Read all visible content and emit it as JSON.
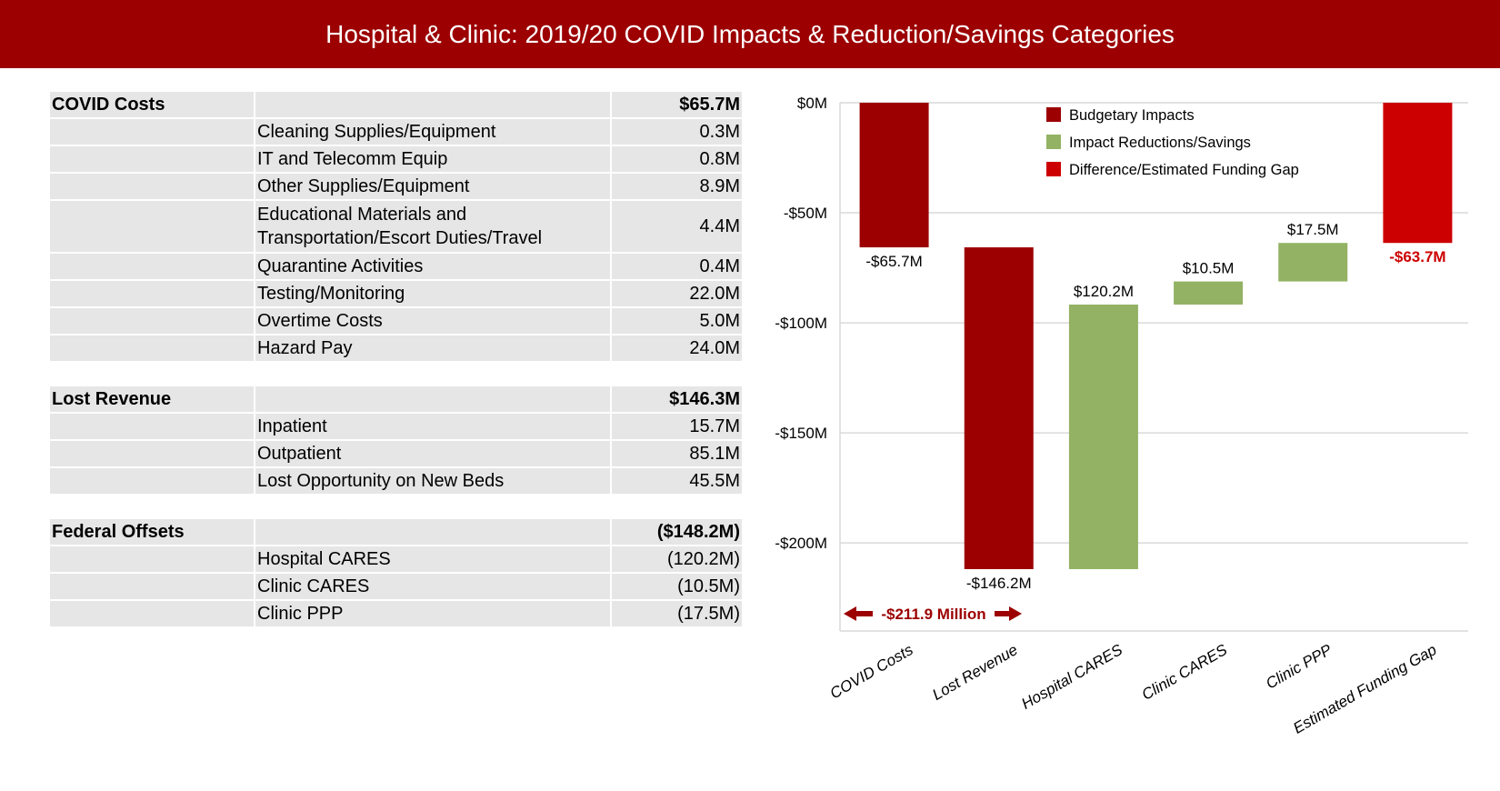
{
  "header": {
    "title": "Hospital & Clinic: 2019/20 COVID Impacts & Reduction/Savings Categories"
  },
  "table": {
    "sections": [
      {
        "label": "COVID Costs",
        "total": "$65.7M",
        "rows": [
          {
            "label": "Cleaning Supplies/Equipment",
            "value": "0.3M"
          },
          {
            "label": "IT and Telecomm Equip",
            "value": "0.8M"
          },
          {
            "label": "Other Supplies/Equipment",
            "value": "8.9M"
          },
          {
            "label": "Educational Materials and Transportation/Escort Duties/Travel",
            "value": "4.4M"
          },
          {
            "label": "Quarantine Activities",
            "value": "0.4M"
          },
          {
            "label": "Testing/Monitoring",
            "value": "22.0M"
          },
          {
            "label": "Overtime Costs",
            "value": "5.0M"
          },
          {
            "label": "Hazard Pay",
            "value": "24.0M"
          }
        ]
      },
      {
        "label": "Lost Revenue",
        "total": "$146.3M",
        "rows": [
          {
            "label": "Inpatient",
            "value": "15.7M"
          },
          {
            "label": "Outpatient",
            "value": "85.1M"
          },
          {
            "label": "Lost Opportunity on New Beds",
            "value": "45.5M"
          }
        ]
      },
      {
        "label": "Federal Offsets",
        "total": "($148.2M)",
        "rows": [
          {
            "label": "Hospital CARES",
            "value": "(120.2M)"
          },
          {
            "label": "Clinic CARES",
            "value": "(10.5M)"
          },
          {
            "label": "Clinic PPP",
            "value": "(17.5M)"
          }
        ]
      }
    ]
  },
  "chart_data": {
    "type": "waterfall",
    "categories": [
      "COVID Costs",
      "Lost Revenue",
      "Hospital CARES",
      "Clinic CARES",
      "Clinic PPP",
      "Estimated Funding Gap"
    ],
    "bars": [
      {
        "start": 0,
        "end": -65.7,
        "type": "Budgetary Impacts",
        "label": "-$65.7M"
      },
      {
        "start": -65.7,
        "end": -211.9,
        "type": "Budgetary Impacts",
        "label": "-$146.2M"
      },
      {
        "start": -211.9,
        "end": -91.7,
        "type": "Impact Reductions/Savings",
        "label": "$120.2M"
      },
      {
        "start": -91.7,
        "end": -81.2,
        "type": "Impact Reductions/Savings",
        "label": "$10.5M"
      },
      {
        "start": -81.2,
        "end": -63.7,
        "type": "Impact Reductions/Savings",
        "label": "$17.5M"
      },
      {
        "start": 0,
        "end": -63.7,
        "type": "Difference/Estimated Funding Gap",
        "label": "-$63.7M"
      }
    ],
    "legend": [
      {
        "name": "Budgetary Impacts",
        "color": "#9c0000"
      },
      {
        "name": "Impact Reductions/Savings",
        "color": "#93b263"
      },
      {
        "name": "Difference/Estimated Funding Gap",
        "color": "#cc0000"
      }
    ],
    "legend_position": "top-center",
    "yticks": [
      0,
      -50,
      -100,
      -150,
      -200
    ],
    "ytick_labels": [
      "$0M",
      "-$50M",
      "-$100M",
      "-$150M",
      "-$200M"
    ],
    "ylim": [
      -240,
      0
    ],
    "grid": true,
    "annotation": "-$211.9 Million",
    "annotation_color": "#9c0000"
  }
}
